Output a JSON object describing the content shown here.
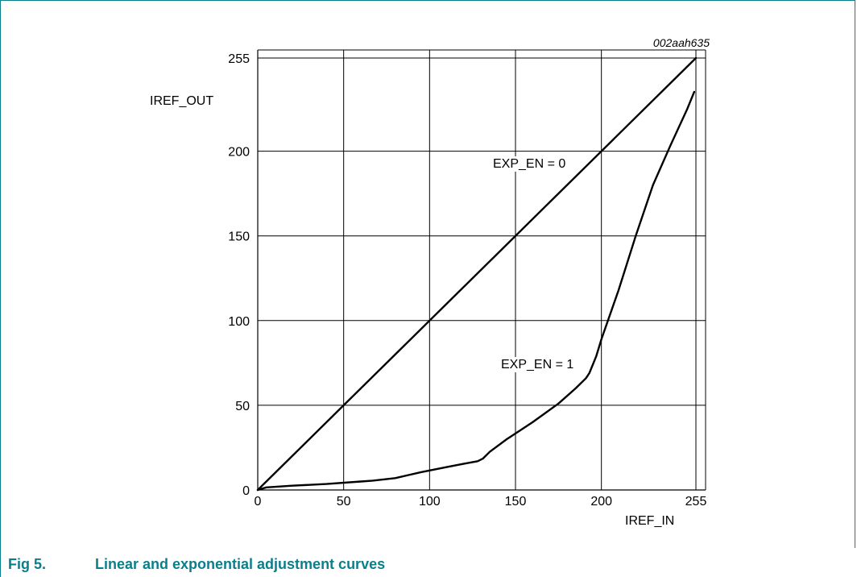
{
  "figure": {
    "number": "Fig 5.",
    "title": "Linear and exponential adjustment curves",
    "ref_code": "002aah635",
    "accent_color": "#0a7f8c"
  },
  "chart_data": {
    "type": "line",
    "xlabel": "IREF_IN",
    "ylabel": "IREF_OUT",
    "xlim": [
      0,
      255
    ],
    "ylim": [
      0,
      255
    ],
    "x_ticks": [
      0,
      50,
      100,
      150,
      200,
      255
    ],
    "y_ticks": [
      0,
      50,
      100,
      150,
      200,
      255
    ],
    "grid": true,
    "series": [
      {
        "name": "EXP_EN = 0",
        "x": [
          0,
          255
        ],
        "y": [
          0,
          255
        ]
      },
      {
        "name": "EXP_EN = 1",
        "x": [
          0,
          5,
          20,
          40,
          60,
          67,
          80,
          95,
          110,
          120,
          128,
          131,
          135,
          145,
          160,
          175,
          185,
          191,
          193,
          197,
          200,
          210,
          220,
          230,
          240,
          250,
          254
        ],
        "y": [
          0,
          1.5,
          2.5,
          3.5,
          5,
          5.5,
          7,
          10.5,
          13.5,
          15.5,
          17,
          18.5,
          22.5,
          30,
          40,
          51,
          60,
          66,
          69,
          79,
          89,
          118,
          150,
          180,
          203,
          225,
          235
        ]
      }
    ]
  }
}
